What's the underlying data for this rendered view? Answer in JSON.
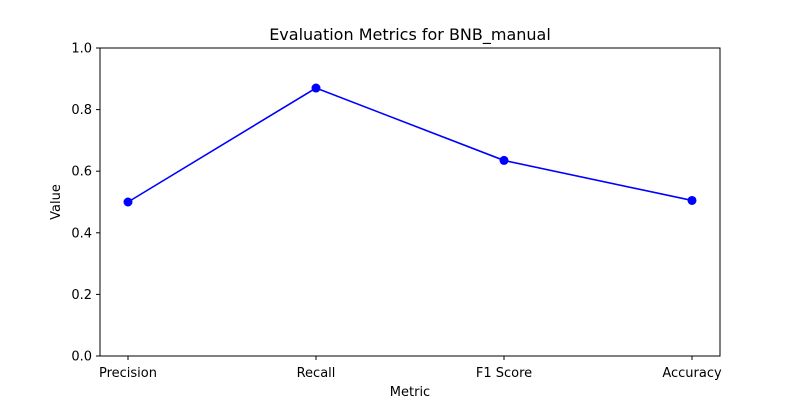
{
  "chart_data": {
    "type": "line",
    "title": "Evaluation Metrics for BNB_manual",
    "xlabel": "Metric",
    "ylabel": "Value",
    "categories": [
      "Precision",
      "Recall",
      "F1 Score",
      "Accuracy"
    ],
    "series": [
      {
        "values": [
          0.5,
          0.87,
          0.635,
          0.505
        ],
        "color": "#0000ff",
        "marker": "circle"
      }
    ],
    "ylim": [
      0,
      1.0
    ],
    "yticks": [
      "0.0",
      "0.2",
      "0.4",
      "0.6",
      "0.8",
      "1.0"
    ],
    "grid": false,
    "legend": "none"
  }
}
